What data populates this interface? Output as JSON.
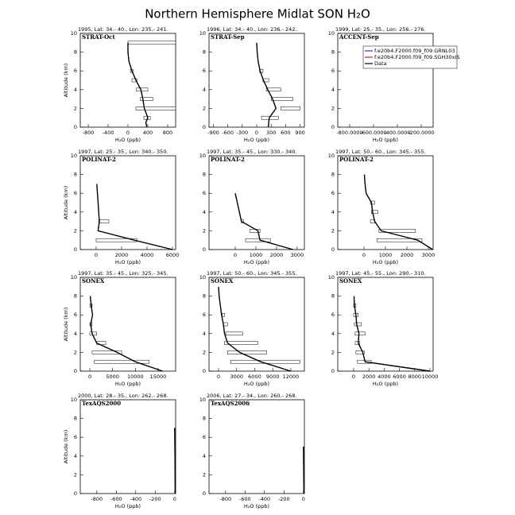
{
  "title": "Northern Hemisphere Midlat SON H₂O",
  "chart_data": [
    {
      "type": "line",
      "title": "1995, Lat: 34.- 40., Lon: 235.- 241.",
      "label": "STRAT-Oct",
      "xlabel": "H₂O (ppb)",
      "ylabel": "Altitude (km)",
      "xlim": [
        -960,
        960
      ],
      "xticks": [
        -800,
        -400,
        0,
        400,
        800
      ],
      "ylim": [
        0,
        10
      ],
      "yticks": [
        0,
        2,
        4,
        6,
        8,
        10
      ],
      "series": [
        {
          "name": "Data",
          "color": "#000000",
          "x": [
            380,
            360,
            400,
            330,
            300,
            260,
            160,
            80,
            20,
            0,
            0
          ],
          "y": [
            0,
            0.5,
            1,
            2,
            3,
            4,
            5,
            6,
            7,
            8,
            9
          ]
        }
      ],
      "boxes": [
        {
          "alt": 9,
          "low": 0,
          "high": 960
        },
        {
          "alt": 2,
          "low": 160,
          "high": 960
        },
        {
          "alt": 3,
          "low": 250,
          "high": 500
        },
        {
          "alt": 4,
          "low": 170,
          "high": 400
        },
        {
          "alt": 5,
          "low": 80,
          "high": 180
        },
        {
          "alt": 6,
          "low": 50,
          "high": 100
        },
        {
          "alt": 1,
          "low": 320,
          "high": 450
        }
      ]
    },
    {
      "type": "line",
      "title": "1996, Lat: 34.- 40., Lon: 236.- 242.",
      "label": "STRAT-Sep",
      "xlabel": "H₂O (ppb)",
      "xlim": [
        -990,
        990
      ],
      "xticks": [
        -900,
        -600,
        -300,
        0,
        300,
        600,
        900
      ],
      "ylim": [
        0,
        10
      ],
      "yticks": [
        0,
        2,
        4,
        6,
        8,
        10
      ],
      "series": [
        {
          "name": "Data",
          "color": "#000000",
          "x": [
            240,
            260,
            400,
            330,
            230,
            140,
            70,
            30,
            10,
            0
          ],
          "y": [
            0,
            1,
            2,
            3,
            4,
            5,
            6,
            7,
            8,
            9
          ]
        }
      ],
      "boxes": [
        {
          "alt": 1,
          "low": 100,
          "high": 450
        },
        {
          "alt": 2,
          "low": 500,
          "high": 900
        },
        {
          "alt": 3,
          "low": 300,
          "high": 750
        },
        {
          "alt": 4,
          "low": 200,
          "high": 500
        },
        {
          "alt": 5,
          "low": 130,
          "high": 250
        },
        {
          "alt": 6,
          "low": 60,
          "high": 130
        }
      ]
    },
    {
      "type": "line",
      "title": "1999, Lat: 25.- 35., Lon: 256.- 276.",
      "label": "ACCENT-Sep",
      "xlabel": "H₂O (ppb)",
      "xlim": [
        -900,
        -100
      ],
      "xticks": [
        {
          "value": -800,
          "label": "-800.0000"
        },
        {
          "value": -600,
          "label": "-600.0000"
        },
        {
          "value": -400,
          "label": "-400.0000"
        },
        {
          "value": -200,
          "label": "-200.0000"
        }
      ],
      "ylim": [
        0,
        10
      ],
      "yticks": [
        0,
        2,
        4,
        6,
        8,
        10
      ],
      "legend": "upper right",
      "series": [
        {
          "name": "f.e20b4.F2000.f09_f09.GRNL03",
          "color": "#1f3fbf"
        },
        {
          "name": "f.e20b4.F2000.f09_f09.SGH30xIS",
          "color": "#d42020"
        },
        {
          "name": "Data",
          "color": "#000000"
        }
      ]
    },
    {
      "type": "line",
      "title": "1997, Lat: 25.- 35., Lon: 340.- 350.",
      "label": "POLINAT-2",
      "xlabel": "H₂O (ppb)",
      "ylabel": "Altitude (km)",
      "xlim": [
        -1250,
        6250
      ],
      "xticks": [
        0,
        2000,
        4000,
        6000
      ],
      "ylim": [
        0,
        10
      ],
      "yticks": [
        0,
        2,
        4,
        6,
        8,
        10
      ],
      "series": [
        {
          "name": "Data",
          "color": "#000000",
          "x": [
            6000,
            3000,
            150,
            250,
            200,
            150,
            100,
            50
          ],
          "y": [
            0,
            1,
            2,
            3,
            4,
            5,
            6,
            7
          ]
        }
      ],
      "boxes": [
        {
          "alt": 1,
          "low": 0,
          "high": 3200
        },
        {
          "alt": 3,
          "low": 200,
          "high": 1000
        }
      ]
    },
    {
      "type": "line",
      "title": "1997, Lat: 35.- 45., Lon: 330.- 340.",
      "label": "POLINAT-2",
      "xlabel": "H₂O (ppb)",
      "xlim": [
        -1270,
        3350
      ],
      "xticks": [
        0,
        1000,
        2000,
        3000
      ],
      "ylim": [
        0,
        10
      ],
      "yticks": [
        0,
        2,
        4,
        6,
        8,
        10
      ],
      "series": [
        {
          "name": "Data",
          "color": "#000000",
          "x": [
            2800,
            1200,
            1100,
            300,
            200,
            100,
            0
          ],
          "y": [
            0,
            1,
            2,
            3,
            4,
            5,
            6
          ]
        }
      ],
      "boxes": [
        {
          "alt": 1,
          "low": 500,
          "high": 1700
        },
        {
          "alt": 2,
          "low": 700,
          "high": 1200
        },
        {
          "alt": 3,
          "low": 300,
          "high": 400
        }
      ]
    },
    {
      "type": "line",
      "title": "1997, Lat: 50.- 60., Lon: 345.- 355.",
      "label": "POLINAT-2",
      "xlabel": "H₂O (ppb)",
      "xlim": [
        -1220,
        3220
      ],
      "xticks": [
        0,
        1000,
        2000,
        3000
      ],
      "ylim": [
        0,
        10
      ],
      "yticks": [
        0,
        2,
        4,
        6,
        8,
        10
      ],
      "series": [
        {
          "name": "Data",
          "color": "#000000",
          "x": [
            3200,
            2500,
            800,
            500,
            400,
            350,
            100,
            50,
            20
          ],
          "y": [
            0,
            1,
            2,
            3,
            4,
            5,
            6,
            7,
            8
          ]
        }
      ],
      "boxes": [
        {
          "alt": 1,
          "low": 600,
          "high": 2700
        },
        {
          "alt": 2,
          "low": 700,
          "high": 2400
        },
        {
          "alt": 3,
          "low": 300,
          "high": 500
        },
        {
          "alt": 4,
          "low": 350,
          "high": 650
        },
        {
          "alt": 5,
          "low": 300,
          "high": 500
        }
      ]
    },
    {
      "type": "line",
      "title": "1997, Lat: 35.- 45., Lon: 325.- 345.",
      "label": "SONEX",
      "xlabel": "H₂O (ppb)",
      "ylabel": "Altitude (km)",
      "xlim": [
        -2100,
        18850
      ],
      "xticks": [
        0,
        5000,
        10000,
        15000
      ],
      "ylim": [
        0,
        10
      ],
      "yticks": [
        0,
        2,
        4,
        6,
        8,
        10
      ],
      "series": [
        {
          "name": "Data",
          "color": "#000000",
          "x": [
            16000,
            10000,
            6000,
            1500,
            500,
            200,
            600,
            300,
            100
          ],
          "y": [
            0,
            1,
            2,
            3,
            4,
            5,
            6,
            7,
            8
          ]
        }
      ],
      "boxes": [
        {
          "alt": 1,
          "low": 1000,
          "high": 13000
        },
        {
          "alt": 2,
          "low": 500,
          "high": 7000
        },
        {
          "alt": 3,
          "low": 1500,
          "high": 3500
        },
        {
          "alt": 4,
          "low": 0,
          "high": 1500
        },
        {
          "alt": 5,
          "low": 0,
          "high": 500
        },
        {
          "alt": 7,
          "low": 0,
          "high": 500
        }
      ]
    },
    {
      "type": "line",
      "title": "1997, Lat: 50.- 60., Lon: 345.- 355.",
      "label": "SONEX",
      "xlabel": "H₂O (ppb)",
      "xlim": [
        -1580,
        14250
      ],
      "xticks": [
        0,
        3000,
        6000,
        9000,
        12000
      ],
      "ylim": [
        0,
        10
      ],
      "yticks": [
        0,
        2,
        4,
        6,
        8,
        10
      ],
      "series": [
        {
          "name": "Data",
          "color": "#000000",
          "x": [
            12000,
            7000,
            3500,
            1500,
            1000,
            800,
            500,
            300,
            100,
            0
          ],
          "y": [
            0,
            1,
            2,
            3,
            4,
            5,
            6,
            7,
            8,
            9
          ]
        }
      ],
      "boxes": [
        {
          "alt": 1,
          "low": 2000,
          "high": 13500
        },
        {
          "alt": 2,
          "low": 1500,
          "high": 8000
        },
        {
          "alt": 3,
          "low": 1000,
          "high": 6500
        },
        {
          "alt": 4,
          "low": 1200,
          "high": 4000
        },
        {
          "alt": 5,
          "low": 800,
          "high": 1500
        },
        {
          "alt": 6,
          "low": 600,
          "high": 1000
        }
      ]
    },
    {
      "type": "line",
      "title": "1997, Lat: 45.- 55., Lon: 290.- 310.",
      "label": "SONEX",
      "xlabel": "H₂O (ppb)",
      "xlim": [
        -2080,
        10420
      ],
      "xticks": [
        0,
        2000,
        4000,
        6000,
        8000,
        10000
      ],
      "ylim": [
        0,
        10
      ],
      "yticks": [
        0,
        2,
        4,
        6,
        8,
        10
      ],
      "series": [
        {
          "name": "Data",
          "color": "#000000",
          "x": [
            10000,
            1500,
            1200,
            600,
            700,
            400,
            300,
            100,
            50
          ],
          "y": [
            0,
            1,
            2,
            3,
            4,
            5,
            6,
            7,
            8
          ]
        }
      ],
      "boxes": [
        {
          "alt": 1,
          "low": 500,
          "high": 2300
        },
        {
          "alt": 2,
          "low": 300,
          "high": 1400
        },
        {
          "alt": 3,
          "low": 200,
          "high": 800
        },
        {
          "alt": 4,
          "low": 200,
          "high": 1500
        },
        {
          "alt": 5,
          "low": 100,
          "high": 1000
        },
        {
          "alt": 6,
          "low": 0,
          "high": 600
        },
        {
          "alt": 7,
          "low": 0,
          "high": 300
        }
      ]
    },
    {
      "type": "line",
      "title": "2000, Lat: 28.- 35., Lon: 262.- 268.",
      "label": "TexAQS2000",
      "xlabel": "H₂O (ppb)",
      "ylabel": "Altitude (km)",
      "xlim": [
        -970,
        10
      ],
      "xticks": [
        -800,
        -600,
        -400,
        -200,
        0
      ],
      "ylim": [
        0,
        10
      ],
      "yticks": [
        0,
        2,
        4,
        6,
        8,
        10
      ],
      "series": [
        {
          "name": "Data",
          "color": "#000000",
          "x": [
            5,
            3,
            0
          ],
          "y": [
            0,
            4,
            7
          ]
        }
      ]
    },
    {
      "type": "line",
      "title": "2006, Lat: 27.- 34., Lon: 260.- 268.",
      "label": "TexAQS2006",
      "xlabel": "H₂O (ppb)",
      "xlim": [
        -970,
        10
      ],
      "xticks": [
        -800,
        -600,
        -400,
        -200,
        0
      ],
      "ylim": [
        0,
        10
      ],
      "yticks": [
        0,
        2,
        4,
        6,
        8,
        10
      ],
      "series": [
        {
          "name": "Data",
          "color": "#000000",
          "x": [
            5,
            2,
            0
          ],
          "y": [
            0,
            3,
            5
          ]
        }
      ]
    }
  ]
}
